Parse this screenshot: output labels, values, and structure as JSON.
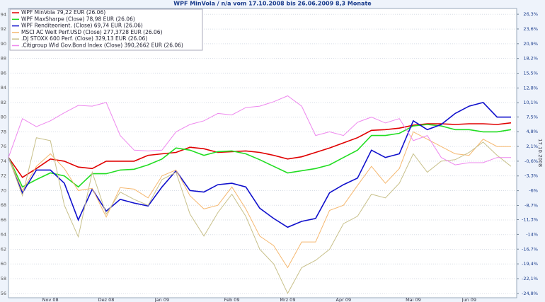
{
  "chart_data": {
    "type": "line",
    "title": "WPF MinVola / n/a vom 17.10.2008 bis 26.06.2009 8,3 Monate",
    "side_label": "17.10.2008",
    "categories": [
      null,
      null,
      null,
      "Nov 08",
      null,
      null,
      null,
      "Dez 08",
      null,
      null,
      null,
      "Jan 09",
      null,
      null,
      null,
      null,
      "Feb 09",
      null,
      null,
      null,
      "Mrz 09",
      null,
      null,
      null,
      "Apr 09",
      null,
      null,
      null,
      null,
      "Mai 09",
      null,
      null,
      null,
      "Jun 09",
      null,
      null,
      null
    ],
    "series": [
      {
        "name": "WPF MinVola 79,22 EUR (26.06)",
        "color": "#e00000",
        "values": [
          74.5,
          71.8,
          73,
          74.3,
          74,
          73.2,
          73,
          74,
          74,
          74,
          74.8,
          75,
          75.2,
          75.9,
          75.7,
          75.2,
          75.3,
          75.4,
          75.2,
          74.8,
          74.3,
          74.6,
          75.2,
          75.8,
          76.5,
          77.2,
          78.2,
          78.3,
          78.5,
          78.9,
          79.1,
          79.1,
          79,
          79.1,
          79.1,
          79,
          79.22
        ]
      },
      {
        "name": "WPF MaxSharpe (Close) 78,98 EUR (26.06)",
        "color": "#22dd22",
        "values": [
          74.5,
          70.5,
          71.5,
          72.4,
          72,
          70.5,
          72.3,
          72.3,
          72.8,
          72.9,
          73.5,
          74.3,
          75.8,
          75.5,
          74.8,
          75.3,
          75.4,
          75,
          74.2,
          73.3,
          72.4,
          72.7,
          73,
          73.5,
          74.5,
          75.5,
          77.5,
          77.5,
          77.8,
          78.8,
          79,
          78.8,
          78.3,
          78.3,
          78,
          78,
          78.3
        ]
      },
      {
        "name": "WPF Renditeorient. (Close) 69,74 EUR (26.06)",
        "color": "#1010cc",
        "values": [
          74.5,
          69.7,
          72.8,
          72.8,
          71,
          66,
          70.2,
          67.2,
          68.8,
          68.3,
          67.9,
          70.5,
          72.7,
          70,
          69.8,
          70.8,
          71,
          70.5,
          67.6,
          66.2,
          65,
          65.8,
          66.2,
          69.7,
          70.8,
          71.7,
          75.5,
          74.5,
          75,
          79.5,
          78.3,
          79,
          80.5,
          81.5,
          82,
          80,
          80
        ]
      },
      {
        "name": "MSCI AC Welt Perf.USD (Close) 277,3728 EUR (26.06)",
        "color": "#f5b870",
        "values": [
          74.5,
          70,
          73.3,
          75,
          73,
          70,
          70.3,
          66.4,
          70.4,
          70.2,
          69,
          72,
          72.8,
          69.3,
          67.5,
          68,
          70.5,
          67.5,
          63.8,
          62.5,
          59.5,
          63,
          63,
          67.3,
          68,
          70.7,
          73.3,
          71,
          73,
          78,
          77,
          76,
          75,
          74.8,
          77,
          76,
          76
        ]
      },
      {
        "name": ".DJ STOXX 600 Perf. (Close) 329,13 EUR (26.06)",
        "color": "#c8c08a",
        "values": [
          74.5,
          69.3,
          77.2,
          76.8,
          68,
          63.7,
          72.5,
          66.8,
          69.8,
          68.8,
          68,
          71.5,
          72.5,
          66.8,
          63.8,
          67,
          69.5,
          66.5,
          62,
          60,
          56,
          59.5,
          60.5,
          62,
          65.5,
          66.5,
          69.5,
          69,
          71,
          75,
          72.5,
          74,
          74.2,
          75.2,
          76.6,
          74.8,
          73.3
        ]
      },
      {
        "name": ".Citigroup Wld Gov.Bond Index (Close) 390,2662 EUR (26.06)",
        "color": "#ee88ee",
        "values": [
          74.5,
          79.8,
          78.7,
          79.5,
          80.6,
          81.6,
          81.5,
          82,
          77.5,
          75.5,
          75.4,
          75.5,
          78,
          79,
          79.5,
          80.5,
          80.3,
          81.3,
          81.5,
          82.1,
          82.9,
          81.5,
          77.5,
          78,
          77.5,
          79.3,
          80,
          79.2,
          79.8,
          76.8,
          77.5,
          74.5,
          73.5,
          73.8,
          73.8,
          74.5,
          74.5
        ]
      }
    ],
    "ylim": [
      55.4,
      94.8
    ],
    "yticks": [
      56,
      58,
      60,
      62,
      64,
      66,
      68,
      70,
      72,
      74,
      76,
      78,
      80,
      82,
      84,
      86,
      88,
      90,
      92,
      94
    ],
    "y2lim": [
      -25.6,
      27.35
    ],
    "y2ticks": [
      {
        "value": -24.8,
        "label": "-24,8%"
      },
      {
        "value": -22.1,
        "label": "-22,1%"
      },
      {
        "value": -19.4,
        "label": "-19,4%"
      },
      {
        "value": -16.7,
        "label": "-16,7%"
      },
      {
        "value": -14,
        "label": "-14%"
      },
      {
        "value": -11.3,
        "label": "-11,3%"
      },
      {
        "value": -8.7,
        "label": "-8,7%"
      },
      {
        "value": -6,
        "label": "-6%"
      },
      {
        "value": -3.3,
        "label": "-3,3%"
      },
      {
        "value": -0.6,
        "label": "-0,6%"
      },
      {
        "value": 2.1,
        "label": "2,1%"
      },
      {
        "value": 4.8,
        "label": "4,8%"
      },
      {
        "value": 7.5,
        "label": "7,5%"
      },
      {
        "value": 10.1,
        "label": "10,1%"
      },
      {
        "value": 12.8,
        "label": "12,8%"
      },
      {
        "value": 15.5,
        "label": "15,5%"
      },
      {
        "value": 18.2,
        "label": "18,2%"
      },
      {
        "value": 20.9,
        "label": "20,9%"
      },
      {
        "value": 23.6,
        "label": "23,6%"
      },
      {
        "value": 26.3,
        "label": "26,3%"
      }
    ],
    "grid": true
  }
}
